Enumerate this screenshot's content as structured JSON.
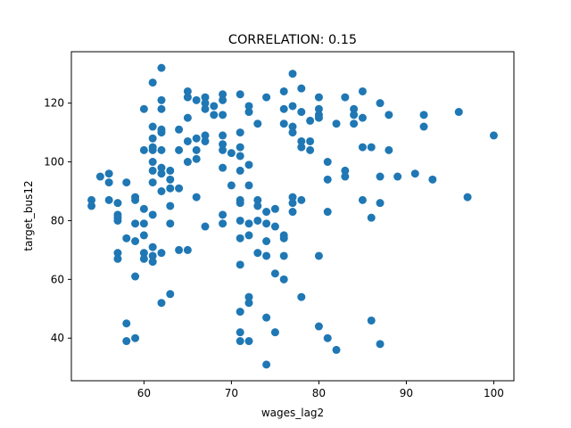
{
  "chart_data": {
    "type": "scatter",
    "title": "CORRELATION: 0.15",
    "xlabel": "wages_lag2",
    "ylabel": "target_bus12",
    "xlim": [
      51.7,
      102.3
    ],
    "ylim": [
      25.5,
      137.5
    ],
    "xticks": [
      60,
      70,
      80,
      90,
      100
    ],
    "yticks": [
      40,
      60,
      80,
      100,
      120
    ],
    "grid": false,
    "marker_color": "#1f77b4",
    "points": [
      [
        54,
        87
      ],
      [
        54,
        85
      ],
      [
        55,
        95
      ],
      [
        56,
        96
      ],
      [
        56,
        93
      ],
      [
        56,
        87
      ],
      [
        57,
        86
      ],
      [
        57,
        82
      ],
      [
        57,
        81
      ],
      [
        57,
        80
      ],
      [
        57,
        69
      ],
      [
        57,
        67
      ],
      [
        58,
        93
      ],
      [
        58,
        74
      ],
      [
        58,
        45
      ],
      [
        58,
        39
      ],
      [
        59,
        88
      ],
      [
        59,
        87
      ],
      [
        59,
        79
      ],
      [
        59,
        73
      ],
      [
        59,
        61
      ],
      [
        59,
        40
      ],
      [
        60,
        118
      ],
      [
        60,
        104
      ],
      [
        60,
        84
      ],
      [
        60,
        79
      ],
      [
        60,
        75
      ],
      [
        60,
        69
      ],
      [
        60,
        67
      ],
      [
        61,
        127
      ],
      [
        61,
        112
      ],
      [
        61,
        108
      ],
      [
        61,
        105
      ],
      [
        61,
        104
      ],
      [
        61,
        100
      ],
      [
        61,
        97
      ],
      [
        61,
        93
      ],
      [
        61,
        82
      ],
      [
        61,
        71
      ],
      [
        61,
        68
      ],
      [
        61,
        66
      ],
      [
        62,
        132
      ],
      [
        62,
        121
      ],
      [
        62,
        118
      ],
      [
        62,
        111
      ],
      [
        62,
        110
      ],
      [
        62,
        104
      ],
      [
        62,
        98
      ],
      [
        62,
        96
      ],
      [
        62,
        90
      ],
      [
        62,
        69
      ],
      [
        62,
        52
      ],
      [
        63,
        97
      ],
      [
        63,
        94
      ],
      [
        63,
        91
      ],
      [
        63,
        85
      ],
      [
        63,
        79
      ],
      [
        63,
        55
      ],
      [
        64,
        111
      ],
      [
        64,
        104
      ],
      [
        64,
        91
      ],
      [
        64,
        70
      ],
      [
        65,
        124
      ],
      [
        65,
        122
      ],
      [
        65,
        115
      ],
      [
        65,
        107
      ],
      [
        65,
        100
      ],
      [
        65,
        70
      ],
      [
        66,
        121
      ],
      [
        66,
        108
      ],
      [
        66,
        104
      ],
      [
        66,
        101
      ],
      [
        66,
        88
      ],
      [
        67,
        122
      ],
      [
        67,
        120
      ],
      [
        67,
        118
      ],
      [
        67,
        109
      ],
      [
        67,
        107
      ],
      [
        67,
        78
      ],
      [
        68,
        119
      ],
      [
        68,
        116
      ],
      [
        69,
        123
      ],
      [
        69,
        121
      ],
      [
        69,
        116
      ],
      [
        69,
        109
      ],
      [
        69,
        106
      ],
      [
        69,
        104
      ],
      [
        69,
        98
      ],
      [
        69,
        82
      ],
      [
        69,
        79
      ],
      [
        70,
        103
      ],
      [
        70,
        92
      ],
      [
        71,
        123
      ],
      [
        71,
        110
      ],
      [
        71,
        105
      ],
      [
        71,
        102
      ],
      [
        71,
        97
      ],
      [
        71,
        87
      ],
      [
        71,
        86
      ],
      [
        71,
        80
      ],
      [
        71,
        74
      ],
      [
        71,
        65
      ],
      [
        71,
        49
      ],
      [
        71,
        42
      ],
      [
        71,
        39
      ],
      [
        72,
        119
      ],
      [
        72,
        117
      ],
      [
        72,
        99
      ],
      [
        72,
        92
      ],
      [
        72,
        79
      ],
      [
        72,
        75
      ],
      [
        72,
        54
      ],
      [
        72,
        52
      ],
      [
        72,
        39
      ],
      [
        73,
        113
      ],
      [
        73,
        87
      ],
      [
        73,
        85
      ],
      [
        73,
        80
      ],
      [
        73,
        69
      ],
      [
        74,
        122
      ],
      [
        74,
        83
      ],
      [
        74,
        79
      ],
      [
        74,
        73
      ],
      [
        74,
        68
      ],
      [
        74,
        47
      ],
      [
        74,
        31
      ],
      [
        75,
        84
      ],
      [
        75,
        78
      ],
      [
        75,
        62
      ],
      [
        75,
        42
      ],
      [
        76,
        124
      ],
      [
        76,
        118
      ],
      [
        76,
        113
      ],
      [
        76,
        75
      ],
      [
        76,
        74
      ],
      [
        76,
        68
      ],
      [
        76,
        60
      ],
      [
        77,
        130
      ],
      [
        77,
        119
      ],
      [
        77,
        112
      ],
      [
        77,
        110
      ],
      [
        77,
        88
      ],
      [
        77,
        86
      ],
      [
        77,
        83
      ],
      [
        78,
        125
      ],
      [
        78,
        117
      ],
      [
        78,
        107
      ],
      [
        78,
        105
      ],
      [
        78,
        87
      ],
      [
        78,
        54
      ],
      [
        79,
        114
      ],
      [
        79,
        107
      ],
      [
        79,
        104
      ],
      [
        80,
        122
      ],
      [
        80,
        118
      ],
      [
        80,
        116
      ],
      [
        80,
        115
      ],
      [
        80,
        68
      ],
      [
        80,
        44
      ],
      [
        81,
        100
      ],
      [
        81,
        94
      ],
      [
        81,
        83
      ],
      [
        81,
        40
      ],
      [
        82,
        113
      ],
      [
        82,
        36
      ],
      [
        83,
        122
      ],
      [
        83,
        97
      ],
      [
        83,
        95
      ],
      [
        84,
        118
      ],
      [
        84,
        116
      ],
      [
        84,
        113
      ],
      [
        85,
        124
      ],
      [
        85,
        115
      ],
      [
        85,
        105
      ],
      [
        85,
        87
      ],
      [
        86,
        105
      ],
      [
        86,
        81
      ],
      [
        86,
        46
      ],
      [
        87,
        120
      ],
      [
        87,
        95
      ],
      [
        87,
        86
      ],
      [
        87,
        38
      ],
      [
        88,
        116
      ],
      [
        88,
        104
      ],
      [
        89,
        95
      ],
      [
        91,
        96
      ],
      [
        92,
        116
      ],
      [
        92,
        112
      ],
      [
        93,
        94
      ],
      [
        96,
        117
      ],
      [
        97,
        88
      ],
      [
        100,
        109
      ]
    ]
  }
}
